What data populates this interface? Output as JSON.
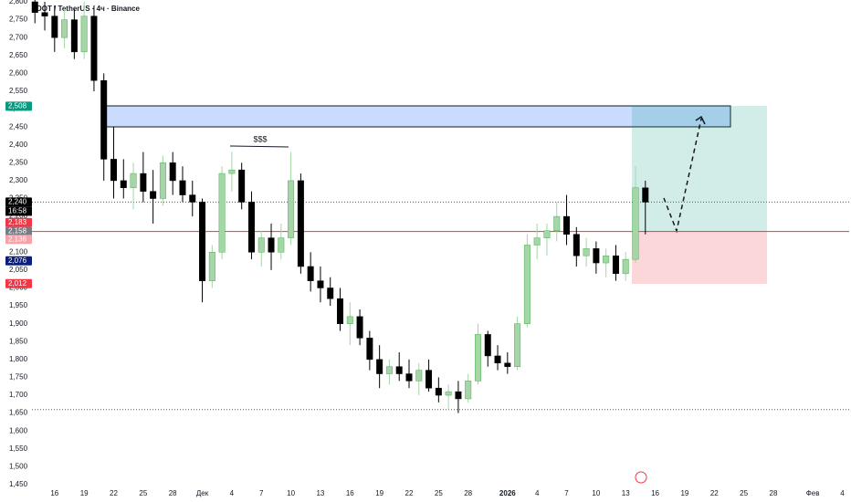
{
  "chart_data": {
    "type": "candlestick",
    "title": "DOT / TetherUS · 4ч · Binance",
    "x": [
      -2,
      -1,
      0,
      1,
      2,
      3,
      4,
      5,
      6,
      7,
      8,
      9,
      10,
      11,
      12,
      13,
      14,
      15,
      16,
      17,
      18,
      19,
      20,
      21,
      22,
      23,
      24,
      25,
      26,
      27,
      28,
      29,
      30,
      31,
      32,
      33,
      34,
      35,
      36,
      37,
      38,
      39,
      40,
      41,
      42,
      43,
      44,
      45,
      46,
      47,
      48,
      49,
      50,
      51,
      52,
      53,
      54,
      55,
      56,
      57,
      58,
      59,
      60
    ],
    "open": [
      2.8,
      2.77,
      2.76,
      2.7,
      2.75,
      2.66,
      2.76,
      2.58,
      2.36,
      2.3,
      2.28,
      2.32,
      2.27,
      2.25,
      2.35,
      2.3,
      2.26,
      2.24,
      2.02,
      2.1,
      2.32,
      2.33,
      2.24,
      2.1,
      2.14,
      2.1,
      2.14,
      2.3,
      2.06,
      2.02,
      2.0,
      1.97,
      1.9,
      1.92,
      1.86,
      1.8,
      1.76,
      1.78,
      1.76,
      1.74,
      1.77,
      1.72,
      1.7,
      1.71,
      1.69,
      1.74,
      1.87,
      1.81,
      1.79,
      1.78,
      1.9,
      2.12,
      2.14,
      2.16,
      2.2,
      2.15,
      2.09,
      2.11,
      2.07,
      2.09,
      2.04,
      2.08,
      2.28
    ],
    "high": [
      2.83,
      2.8,
      2.79,
      2.78,
      2.78,
      2.8,
      2.79,
      2.6,
      2.45,
      2.36,
      2.35,
      2.38,
      2.33,
      2.37,
      2.38,
      2.34,
      2.3,
      2.25,
      2.12,
      2.34,
      2.38,
      2.35,
      2.27,
      2.16,
      2.18,
      2.18,
      2.38,
      2.32,
      2.1,
      2.06,
      2.03,
      2.0,
      1.96,
      1.94,
      1.88,
      1.84,
      1.8,
      1.82,
      1.8,
      1.79,
      1.8,
      1.75,
      1.73,
      1.74,
      1.76,
      1.9,
      1.88,
      1.84,
      1.82,
      1.92,
      2.15,
      2.18,
      2.18,
      2.24,
      2.26,
      2.17,
      2.14,
      2.13,
      2.11,
      2.12,
      2.1,
      2.34,
      2.3
    ],
    "low": [
      2.74,
      2.72,
      2.66,
      2.67,
      2.64,
      2.64,
      2.55,
      2.3,
      2.25,
      2.25,
      2.22,
      2.24,
      2.18,
      2.23,
      2.26,
      2.24,
      2.2,
      1.96,
      2.0,
      2.08,
      2.27,
      2.22,
      2.08,
      2.06,
      2.05,
      2.08,
      2.12,
      2.04,
      1.99,
      1.96,
      1.95,
      1.88,
      1.84,
      1.84,
      1.77,
      1.72,
      1.73,
      1.74,
      1.72,
      1.7,
      1.71,
      1.68,
      1.66,
      1.65,
      1.68,
      1.73,
      1.78,
      1.77,
      1.76,
      1.77,
      1.89,
      2.08,
      2.09,
      2.13,
      2.12,
      2.06,
      2.06,
      2.04,
      2.03,
      2.02,
      2.02,
      2.07,
      2.15
    ],
    "close": [
      2.77,
      2.76,
      2.7,
      2.75,
      2.66,
      2.76,
      2.58,
      2.36,
      2.3,
      2.28,
      2.32,
      2.27,
      2.25,
      2.35,
      2.3,
      2.26,
      2.24,
      2.02,
      2.1,
      2.32,
      2.33,
      2.24,
      2.1,
      2.14,
      2.1,
      2.14,
      2.3,
      2.06,
      2.02,
      2.0,
      1.97,
      1.9,
      1.92,
      1.86,
      1.8,
      1.76,
      1.78,
      1.76,
      1.74,
      1.77,
      1.72,
      1.7,
      1.71,
      1.69,
      1.74,
      1.87,
      1.81,
      1.79,
      1.78,
      1.9,
      2.12,
      2.14,
      2.16,
      2.2,
      2.15,
      2.09,
      2.11,
      2.07,
      2.09,
      2.04,
      2.08,
      2.28,
      2.24
    ],
    "up_color": "#a5d6a7",
    "down_color": "#000000",
    "ylim": [
      1.45,
      2.8
    ],
    "xlim": [
      -2.3,
      80.7
    ],
    "yticks": [
      {
        "value": 2.8,
        "label": "2,800"
      },
      {
        "value": 2.75,
        "label": "2,750"
      },
      {
        "value": 2.7,
        "label": "2,700"
      },
      {
        "value": 2.65,
        "label": "2,650"
      },
      {
        "value": 2.6,
        "label": "2,600"
      },
      {
        "value": 2.55,
        "label": "2,550"
      },
      {
        "value": 2.5,
        "label": "2,500"
      },
      {
        "value": 2.45,
        "label": "2,450"
      },
      {
        "value": 2.4,
        "label": "2,400"
      },
      {
        "value": 2.35,
        "label": "2,350"
      },
      {
        "value": 2.3,
        "label": "2,300"
      },
      {
        "value": 2.25,
        "label": "2,250"
      },
      {
        "value": 2.2,
        "label": "2,200"
      },
      {
        "value": 2.15,
        "label": "2,150"
      },
      {
        "value": 2.1,
        "label": "2,100"
      },
      {
        "value": 2.05,
        "label": "2,050"
      },
      {
        "value": 2.0,
        "label": "2,000"
      },
      {
        "value": 1.95,
        "label": "1,950"
      },
      {
        "value": 1.9,
        "label": "1,900"
      },
      {
        "value": 1.85,
        "label": "1,850"
      },
      {
        "value": 1.8,
        "label": "1,800"
      },
      {
        "value": 1.75,
        "label": "1,750"
      },
      {
        "value": 1.7,
        "label": "1,700"
      },
      {
        "value": 1.65,
        "label": "1,650"
      },
      {
        "value": 1.6,
        "label": "1,600"
      },
      {
        "value": 1.55,
        "label": "1,550"
      },
      {
        "value": 1.5,
        "label": "1,500"
      },
      {
        "value": 1.45,
        "label": "1,450"
      }
    ],
    "xticks": [
      {
        "value": 0,
        "label": "16"
      },
      {
        "value": 3,
        "label": "19"
      },
      {
        "value": 6,
        "label": "22"
      },
      {
        "value": 9,
        "label": "25"
      },
      {
        "value": 12,
        "label": "28"
      },
      {
        "value": 15,
        "label": "Дек"
      },
      {
        "value": 18,
        "label": "4"
      },
      {
        "value": 21,
        "label": "7"
      },
      {
        "value": 24,
        "label": "10"
      },
      {
        "value": 27,
        "label": "13"
      },
      {
        "value": 30,
        "label": "16"
      },
      {
        "value": 33,
        "label": "19"
      },
      {
        "value": 36,
        "label": "22"
      },
      {
        "value": 39,
        "label": "25"
      },
      {
        "value": 42,
        "label": "28"
      },
      {
        "value": 46,
        "label": "2026"
      },
      {
        "value": 49,
        "label": "4"
      },
      {
        "value": 52,
        "label": "7"
      },
      {
        "value": 55,
        "label": "10"
      },
      {
        "value": 58,
        "label": "13"
      },
      {
        "value": 61,
        "label": "16"
      },
      {
        "value": 64,
        "label": "19"
      },
      {
        "value": 67,
        "label": "22"
      },
      {
        "value": 70,
        "label": "25"
      },
      {
        "value": 73,
        "label": "28"
      },
      {
        "value": 77,
        "label": "Фев"
      },
      {
        "value": 80,
        "label": "4"
      }
    ],
    "price_labels": [
      {
        "value": 2.508,
        "label": "2,508",
        "color": "#089981"
      },
      {
        "value": 2.24,
        "label": "2,240",
        "color": "#000000"
      },
      {
        "value": 2.183,
        "label": "2,183",
        "color": "#f23645"
      },
      {
        "value": 2.158,
        "label": "2,158",
        "color": "#787b86"
      },
      {
        "value": 2.136,
        "label": "2,136",
        "color": "#f7a1a8"
      },
      {
        "value": 2.076,
        "label": "2,076",
        "color": "#0c1f7a"
      },
      {
        "value": 2.012,
        "label": "2,012",
        "color": "#f23645"
      }
    ],
    "countdown": "16:58",
    "annotation": "$$$",
    "levels": [
      {
        "value": 2.24,
        "color": "#555",
        "dash": "1,2"
      },
      {
        "value": 2.158,
        "color": "#e53935",
        "dash": "none"
      },
      {
        "value": 1.66,
        "color": "#555",
        "dash": "1,2"
      }
    ]
  }
}
